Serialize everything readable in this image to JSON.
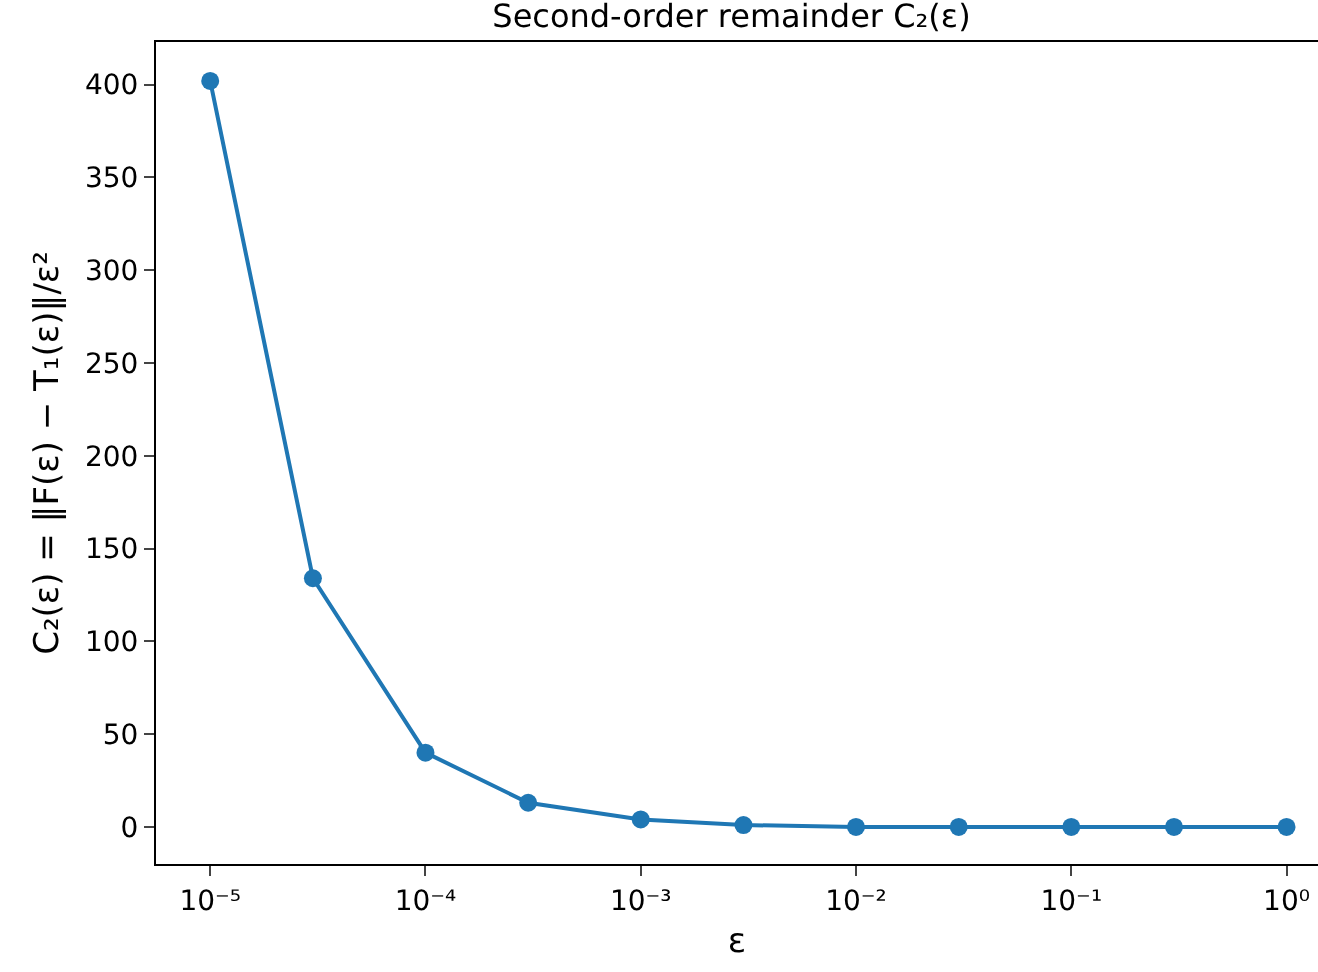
{
  "chart_data": {
    "type": "line",
    "title": "Second-order remainder C₂(ε)",
    "xlabel": "ε",
    "ylabel": "C₂(ε) = ‖F(ε) − T₁(ε)‖/ε²",
    "x": [
      1e-05,
      3e-05,
      0.0001,
      0.0003,
      0.001,
      0.003,
      0.01,
      0.03,
      0.1,
      0.3,
      1
    ],
    "series": [
      {
        "color": "#1f77b4",
        "values": [
          402,
          134,
          40,
          13,
          4,
          1,
          0,
          0,
          0,
          0,
          0
        ]
      }
    ],
    "log": "x",
    "marker": "circle",
    "line_style": "solid",
    "grid": false,
    "xlim": [
      5.6e-06,
      1.4
    ],
    "ylim": [
      -20,
      423
    ],
    "xticks": [
      {
        "value": 1e-05,
        "label": "10⁻⁵"
      },
      {
        "value": 0.0001,
        "label": "10⁻⁴"
      },
      {
        "value": 0.001,
        "label": "10⁻³"
      },
      {
        "value": 0.01,
        "label": "10⁻²"
      },
      {
        "value": 0.1,
        "label": "10⁻¹"
      },
      {
        "value": 1,
        "label": "10⁰"
      }
    ],
    "yticks": [
      0,
      50,
      100,
      150,
      200,
      250,
      300,
      350,
      400
    ]
  }
}
